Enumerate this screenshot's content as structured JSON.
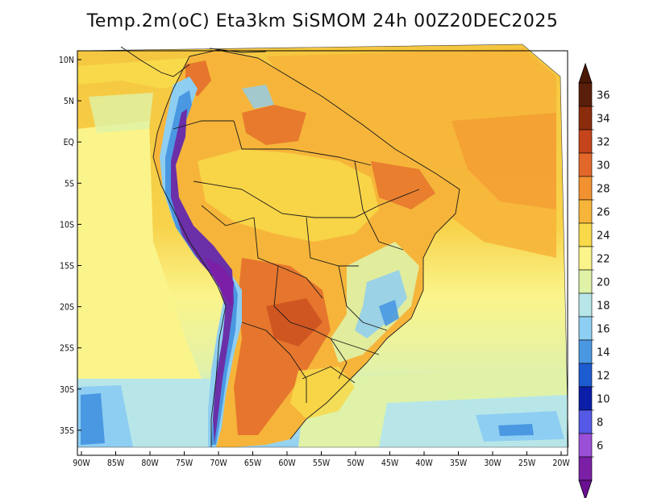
{
  "title": "Temp.2m(oC) Eta3km SiSMOM 24h 00Z20DEC2025",
  "y_axis_labels": [
    "10N",
    "5N",
    "EQ",
    "5S",
    "10S",
    "15S",
    "20S",
    "25S",
    "30S",
    "35S"
  ],
  "x_axis_labels": [
    "90W",
    "85W",
    "80W",
    "75W",
    "70W",
    "65W",
    "60W",
    "55W",
    "50W",
    "45W",
    "40W",
    "35W",
    "30W",
    "25W",
    "20W"
  ],
  "colorbar": {
    "labels": [
      "36",
      "34",
      "32",
      "30",
      "28",
      "26",
      "24",
      "22",
      "20",
      "18",
      "16",
      "14",
      "12",
      "10",
      "8",
      "6"
    ],
    "colors": [
      "#5a1f0a",
      "#8b2c0c",
      "#c4451c",
      "#e2672a",
      "#f2912f",
      "#f6b53a",
      "#f8d94a",
      "#fbf48a",
      "#dff2a8",
      "#b8e6e8",
      "#8ecef2",
      "#4a98e2",
      "#1d5bd0",
      "#0b1ea8",
      "#5559e6",
      "#9a4fd8",
      "#7a1fa6"
    ]
  },
  "colors": {
    "ocean_north": "#f5c640",
    "ocean_south": "#fbf48a",
    "land_warm": "#f6b53a",
    "land_hot": "#e2672a",
    "andes_cold": "#6b2fa8",
    "border": "#1a1a1a"
  }
}
